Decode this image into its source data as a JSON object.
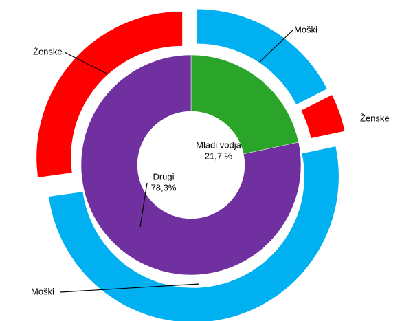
{
  "chart_data": {
    "type": "nested-donut",
    "rings": [
      {
        "categories": [
          "Mladi vodja",
          "Drugi"
        ],
        "values": [
          21.7,
          78.3
        ],
        "value_labels": [
          "21,7 %",
          "78,3%"
        ],
        "colors": [
          "#2aa52a",
          "#7030a0"
        ]
      },
      {
        "categories": [
          "Moški",
          "Ženske",
          "Moški",
          "Ženske"
        ],
        "values": [
          17.5,
          4.2,
          51.1,
          27.2
        ],
        "colors": [
          "#00b0f0",
          "#ff0000",
          "#00b0f0",
          "#ff0000"
        ]
      }
    ]
  }
}
